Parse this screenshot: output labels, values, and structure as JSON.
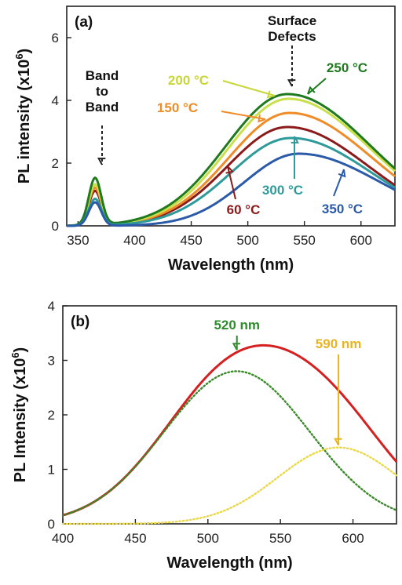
{
  "chart_data": [
    {
      "type": "line",
      "panel_label": "(a)",
      "xlabel": "Wavelength (nm)",
      "ylabel": "PL intensity (x10",
      "ylabel_sup": "6",
      "ylabel_end": ")",
      "xlim": [
        340,
        630
      ],
      "ylim": [
        0,
        7
      ],
      "xticks": [
        350,
        400,
        450,
        500,
        550,
        600
      ],
      "yticks": [
        0,
        2,
        4,
        6
      ],
      "grid": false,
      "series": [
        {
          "name": "60 °C",
          "color": "#8b1a1a",
          "peak_nm": 535,
          "peak": 3.15,
          "band_peak": 1.1,
          "width": 62,
          "skew": 0.15
        },
        {
          "name": "150 °C",
          "color": "#f08c28",
          "peak_nm": 537,
          "peak": 3.6,
          "band_peak": 1.2,
          "width": 63,
          "skew": 0.15
        },
        {
          "name": "200 °C",
          "color": "#c9e04a",
          "peak_nm": 536,
          "peak": 4.05,
          "band_peak": 1.3,
          "width": 63,
          "skew": 0.15
        },
        {
          "name": "250 °C",
          "color": "#1f7a1f",
          "peak_nm": 535,
          "peak": 4.2,
          "band_peak": 1.5,
          "width": 64,
          "skew": 0.15
        },
        {
          "name": "300 °C",
          "color": "#2e9a9a",
          "peak_nm": 538,
          "peak": 2.8,
          "band_peak": 0.85,
          "width": 62,
          "skew": 0.15
        },
        {
          "name": "350 °C",
          "color": "#2a5aa8",
          "peak_nm": 545,
          "peak": 2.3,
          "band_peak": 0.75,
          "width": 60,
          "skew": 0.2
        }
      ],
      "annotations": {
        "band_label": [
          "Band",
          "to",
          "Band"
        ],
        "defects_label": [
          "Surface",
          "Defects"
        ],
        "temp_labels": [
          "200 °C",
          "250 °C",
          "150 °C",
          "300 °C",
          "60 °C",
          "350 °C"
        ]
      }
    },
    {
      "type": "line",
      "panel_label": "(b)",
      "xlabel": "Wavelength (nm)",
      "ylabel": "PL Intensity (x10",
      "ylabel_sup": "6",
      "ylabel_end": ")",
      "xlim": [
        400,
        630
      ],
      "ylim": [
        0,
        4
      ],
      "xticks": [
        400,
        450,
        500,
        550,
        600
      ],
      "yticks": [
        0,
        1,
        2,
        3,
        4
      ],
      "grid": false,
      "series": [
        {
          "color": "#d62020",
          "style": "solid",
          "peak_nm": 535,
          "peak": 3.15
        },
        {
          "color": "#3a8a2a",
          "style": "dotted",
          "peak_nm": 520,
          "peak": 2.8,
          "width": 50
        },
        {
          "color": "#e8d84a",
          "style": "dotted",
          "peak_nm": 590,
          "peak": 1.4,
          "width": 42
        }
      ],
      "annotations": [
        {
          "text": "520 nm",
          "color": "#2e8b2e",
          "x": 520
        },
        {
          "text": "590 nm",
          "color": "#e8b420",
          "x": 590
        }
      ]
    }
  ]
}
